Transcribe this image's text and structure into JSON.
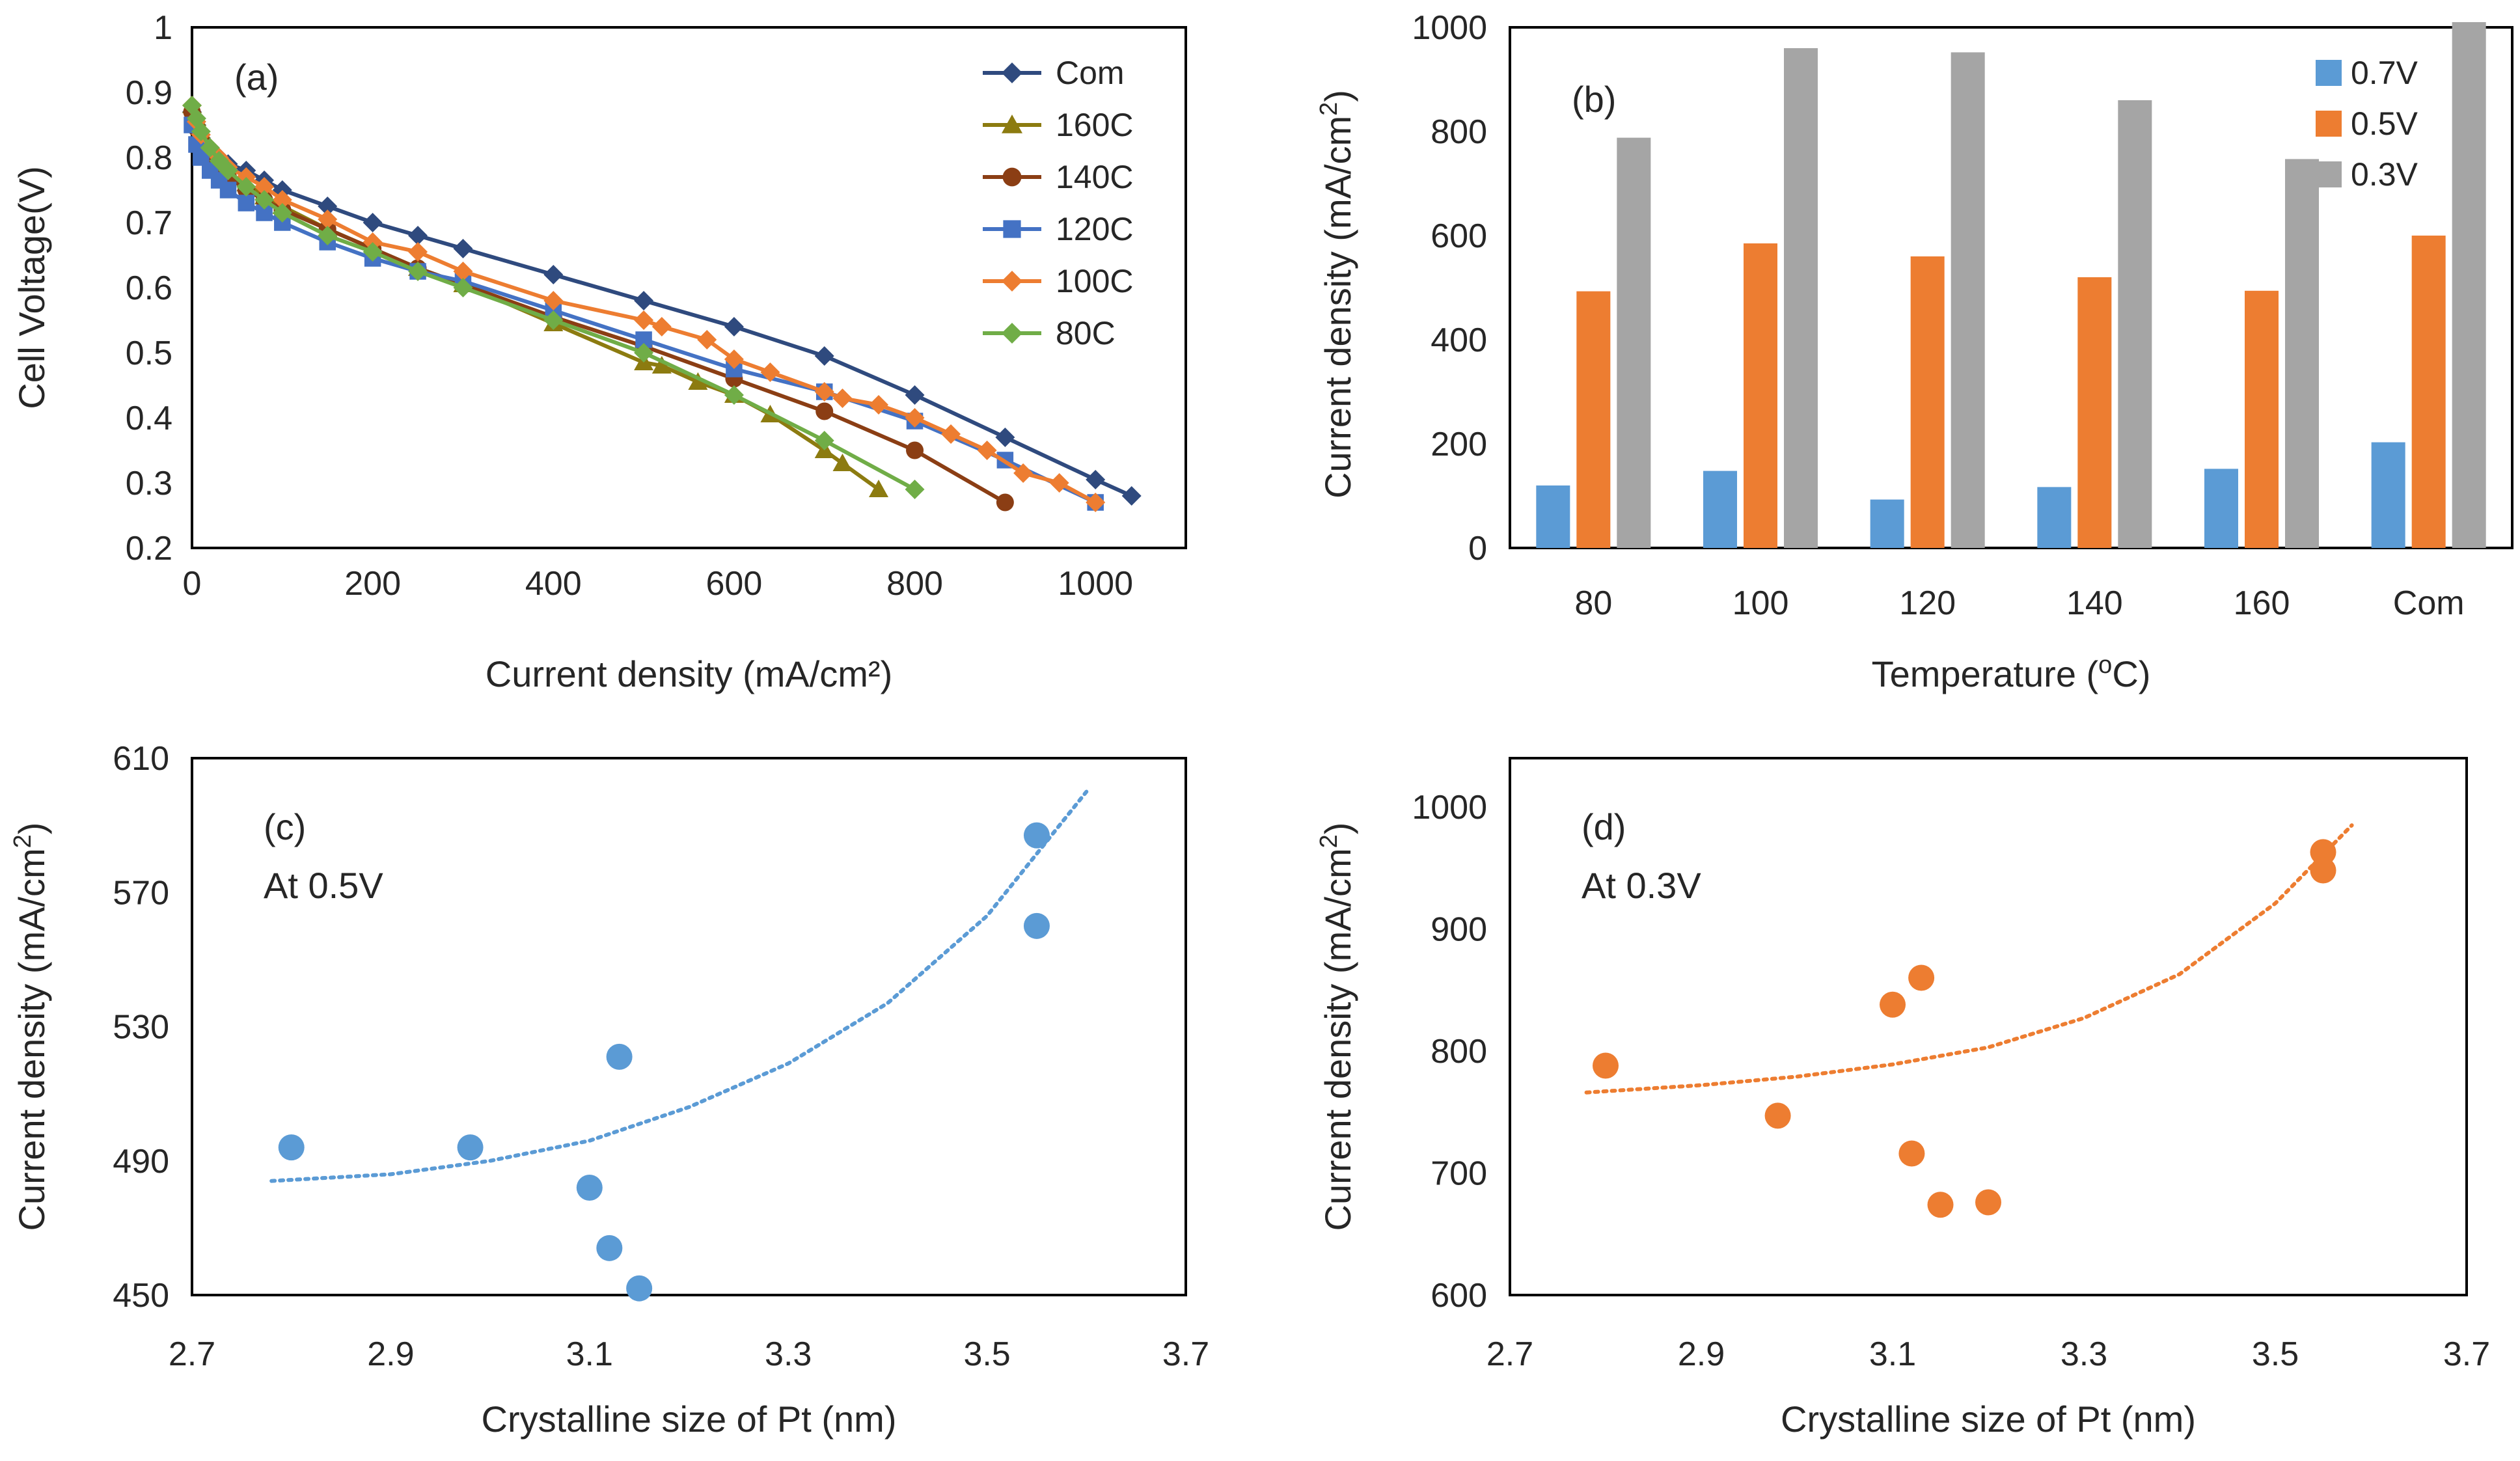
{
  "chart_data": [
    {
      "id": "a",
      "type": "line",
      "panel_label": "(a)",
      "xlabel": "Current density (mA/cm²)",
      "ylabel": "Cell  Voltage(V)",
      "xlim": [
        0,
        1100
      ],
      "ylim": [
        0.2,
        1.0
      ],
      "xticks": [
        "0",
        "200",
        "400",
        "600",
        "800",
        "1000"
      ],
      "yticks": [
        "0.2",
        "0.3",
        "0.4",
        "0.5",
        "0.6",
        "0.7",
        "0.8",
        "0.9",
        "1"
      ],
      "legend_position": "top-right",
      "series": [
        {
          "name": "Com",
          "color": "#2F4A7E",
          "marker": "diamond",
          "x": [
            0,
            5,
            10,
            20,
            30,
            40,
            60,
            80,
            100,
            150,
            200,
            250,
            300,
            400,
            500,
            600,
            700,
            800,
            900,
            1000,
            1040
          ],
          "y": [
            0.87,
            0.85,
            0.83,
            0.81,
            0.8,
            0.79,
            0.78,
            0.765,
            0.75,
            0.725,
            0.7,
            0.68,
            0.66,
            0.62,
            0.58,
            0.54,
            0.495,
            0.435,
            0.37,
            0.305,
            0.28
          ]
        },
        {
          "name": "160C",
          "color": "#8C7B10",
          "marker": "triangle",
          "x": [
            0,
            5,
            10,
            20,
            30,
            40,
            60,
            80,
            100,
            150,
            200,
            250,
            300,
            400,
            500,
            520,
            560,
            600,
            640,
            700,
            720,
            760
          ],
          "y": [
            0.88,
            0.86,
            0.84,
            0.81,
            0.79,
            0.775,
            0.76,
            0.74,
            0.725,
            0.69,
            0.66,
            0.63,
            0.605,
            0.545,
            0.485,
            0.48,
            0.455,
            0.435,
            0.405,
            0.35,
            0.33,
            0.29
          ]
        },
        {
          "name": "140C",
          "color": "#8B3E14",
          "marker": "circle",
          "x": [
            0,
            5,
            10,
            20,
            30,
            40,
            60,
            80,
            100,
            150,
            200,
            250,
            300,
            400,
            500,
            600,
            700,
            800,
            900
          ],
          "y": [
            0.87,
            0.845,
            0.825,
            0.8,
            0.785,
            0.77,
            0.75,
            0.735,
            0.72,
            0.69,
            0.66,
            0.63,
            0.605,
            0.555,
            0.51,
            0.46,
            0.41,
            0.35,
            0.27
          ]
        },
        {
          "name": "120C",
          "color": "#4472C4",
          "marker": "square",
          "x": [
            0,
            5,
            10,
            20,
            30,
            40,
            60,
            80,
            100,
            150,
            200,
            250,
            300,
            400,
            500,
            600,
            700,
            800,
            900,
            1000
          ],
          "y": [
            0.85,
            0.82,
            0.8,
            0.78,
            0.765,
            0.75,
            0.73,
            0.715,
            0.7,
            0.67,
            0.645,
            0.625,
            0.61,
            0.565,
            0.52,
            0.475,
            0.44,
            0.395,
            0.335,
            0.27
          ]
        },
        {
          "name": "100C",
          "color": "#ED7D31",
          "marker": "diamond",
          "x": [
            0,
            5,
            10,
            20,
            30,
            40,
            60,
            80,
            100,
            150,
            200,
            250,
            300,
            400,
            500,
            520,
            570,
            600,
            640,
            700,
            720,
            760,
            800,
            840,
            880,
            920,
            960,
            1000
          ],
          "y": [
            0.88,
            0.855,
            0.835,
            0.815,
            0.8,
            0.785,
            0.77,
            0.755,
            0.735,
            0.705,
            0.67,
            0.655,
            0.625,
            0.58,
            0.55,
            0.54,
            0.52,
            0.49,
            0.47,
            0.44,
            0.43,
            0.42,
            0.4,
            0.375,
            0.35,
            0.315,
            0.3,
            0.27
          ]
        },
        {
          "name": "80C",
          "color": "#70AD47",
          "marker": "diamond",
          "x": [
            0,
            5,
            10,
            20,
            30,
            40,
            60,
            80,
            100,
            150,
            200,
            250,
            300,
            400,
            500,
            600,
            700,
            800
          ],
          "y": [
            0.88,
            0.86,
            0.84,
            0.815,
            0.795,
            0.78,
            0.755,
            0.735,
            0.715,
            0.68,
            0.655,
            0.625,
            0.6,
            0.55,
            0.5,
            0.435,
            0.365,
            0.29
          ]
        }
      ]
    },
    {
      "id": "b",
      "type": "bar",
      "panel_label": "(b)",
      "xlabel": "Temperature (",
      "xlabel_super": "o",
      "xlabel_after": "C)",
      "ylabel": "Current density (mA/cm",
      "ylabel_super": "2",
      "ylabel_after": ")",
      "categories": [
        "80",
        "100",
        "120",
        "140",
        "160",
        "Com"
      ],
      "ylim": [
        0,
        1000
      ],
      "yticks": [
        "0",
        "200",
        "400",
        "600",
        "800",
        "1000"
      ],
      "legend_position": "top-right",
      "series": [
        {
          "name": "0.7V",
          "color": "#5B9BD5",
          "values": [
            120,
            148,
            93,
            117,
            152,
            203
          ]
        },
        {
          "name": "0.5V",
          "color": "#ED7D31",
          "values": [
            493,
            585,
            560,
            520,
            494,
            600
          ]
        },
        {
          "name": "0.3V",
          "color": "#A5A5A5",
          "values": [
            788,
            960,
            952,
            860,
            747,
            1010
          ]
        }
      ]
    },
    {
      "id": "c",
      "type": "scatter",
      "panel_label": "(c)",
      "annotation": "At 0.5V",
      "xlabel": "Crystalline size of Pt (nm)",
      "ylabel": "Current density (mA/cm",
      "ylabel_super": "2",
      "ylabel_after": ")",
      "xlim": [
        2.7,
        3.7
      ],
      "ylim": [
        450,
        610
      ],
      "xticks": [
        "2.7",
        "2.9",
        "3.1",
        "3.3",
        "3.5",
        "3.7"
      ],
      "yticks": [
        "450",
        "490",
        "530",
        "570",
        "610"
      ],
      "color": "#5B9BD5",
      "points": [
        [
          2.8,
          494
        ],
        [
          2.98,
          494
        ],
        [
          3.1,
          482
        ],
        [
          3.12,
          464
        ],
        [
          3.13,
          521
        ],
        [
          3.15,
          452
        ],
        [
          3.55,
          587
        ],
        [
          3.55,
          560
        ]
      ],
      "trendline": {
        "style": "dotted",
        "type": "exponential",
        "x": [
          2.78,
          2.9,
          3.0,
          3.1,
          3.2,
          3.3,
          3.4,
          3.5,
          3.6
        ],
        "y": [
          484,
          486,
          490,
          496,
          506,
          519,
          537,
          563,
          600
        ]
      }
    },
    {
      "id": "d",
      "type": "scatter",
      "panel_label": "(d)",
      "annotation": "At 0.3V",
      "xlabel": "Crystalline size of Pt (nm)",
      "ylabel": "Current density (mA/cm",
      "ylabel_super": "2",
      "ylabel_after": ")",
      "xlim": [
        2.7,
        3.7
      ],
      "ylim": [
        600,
        1040
      ],
      "xticks": [
        "2.7",
        "2.9",
        "3.1",
        "3.3",
        "3.5",
        "3.7"
      ],
      "yticks": [
        "600",
        "700",
        "800",
        "900",
        "1000"
      ],
      "color": "#ED7D31",
      "points": [
        [
          2.8,
          788
        ],
        [
          2.98,
          747
        ],
        [
          3.1,
          838
        ],
        [
          3.12,
          716
        ],
        [
          3.13,
          860
        ],
        [
          3.15,
          674
        ],
        [
          3.2,
          676
        ],
        [
          3.55,
          963
        ],
        [
          3.55,
          948
        ]
      ],
      "trendline": {
        "style": "dotted",
        "type": "exponential",
        "x": [
          2.78,
          2.9,
          3.0,
          3.1,
          3.2,
          3.3,
          3.4,
          3.5,
          3.58
        ],
        "y": [
          766,
          772,
          779,
          789,
          803,
          827,
          863,
          921,
          985
        ]
      }
    }
  ]
}
